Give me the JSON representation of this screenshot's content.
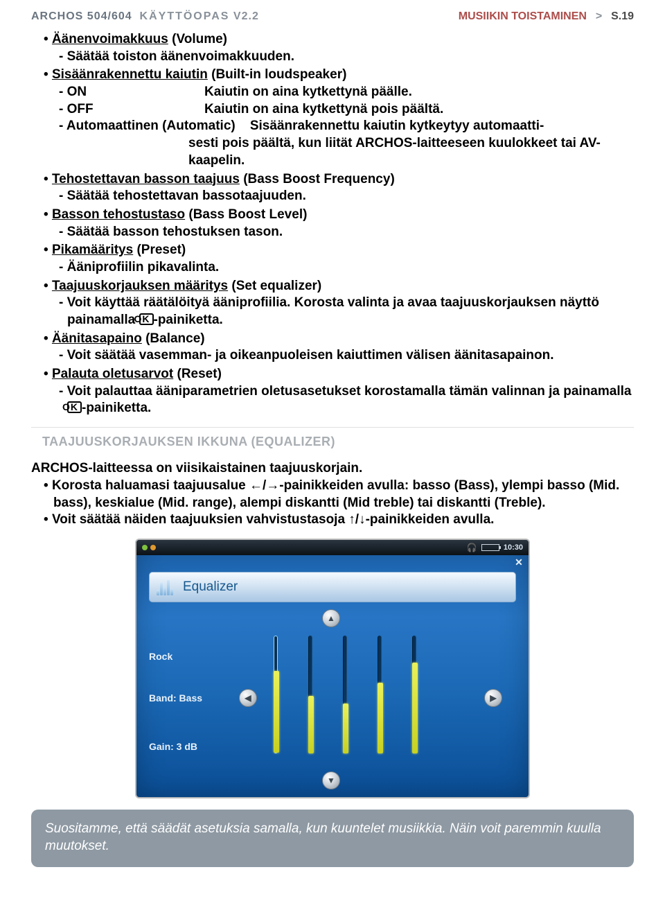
{
  "header": {
    "brand": "ARCHOS",
    "model": "504/604",
    "manual": "KÄYTTÖOPAS",
    "version": "V2.2",
    "breadcrumb": "MUSIIKIN TOISTAMINEN",
    "page_prefix": "S.",
    "page_num": "19"
  },
  "items": [
    {
      "title": "Äänenvoimakkuus",
      "paren": "(Volume)",
      "subs": [
        "Säätää toiston äänenvoimakkuuden."
      ]
    },
    {
      "title": "Sisäänrakennettu kaiutin",
      "paren": "(Built-in loudspeaker)",
      "rows": [
        {
          "lab": "ON",
          "desc": "Kaiutin on aina kytkettynä päälle."
        },
        {
          "lab": "OFF",
          "desc": "Kaiutin on aina kytkettynä pois päältä."
        },
        {
          "lab": "Automaattinen (Automatic)",
          "desc": "Sisäänrakennettu kaiutin kytkeytyy automaattisesti pois päältä, kun liität ARCHOS-laitteeseen kuulokkeet tai AV-kaapelin."
        }
      ]
    },
    {
      "title": "Tehostettavan basson taajuus",
      "paren": "(Bass Boost Frequency)",
      "subs": [
        "Säätää tehostettavan bassotaajuuden."
      ]
    },
    {
      "title": "Basson tehostustaso",
      "paren": "(Bass Boost Level)",
      "subs": [
        "Säätää basson tehostuksen tason."
      ]
    },
    {
      "title": "Pikamääritys",
      "paren": "(Preset)",
      "subs": [
        "Ääniprofiilin pikavalinta."
      ]
    },
    {
      "title": "Taajuuskorjauksen määritys",
      "paren": "(Set equalizer)",
      "subs_ok": [
        {
          "pre": "Voit käyttää räätälöityä ääniprofiilia. Korosta valinta ja avaa taajuuskorjauksen näyttö painamalla ",
          "post": "-painiketta."
        }
      ]
    },
    {
      "title": "Äänitasapaino",
      "paren": "(Balance)",
      "subs": [
        "Voit säätää vasemman- ja oikeanpuoleisen kaiuttimen välisen äänitasapainon."
      ]
    },
    {
      "title": "Palauta oletusarvot",
      "paren": "(Reset)",
      "subs_ok": [
        {
          "pre": "Voit palauttaa ääniparametrien oletusasetukset korostamalla tämän valinnan ja painamalla ",
          "post": "-painiketta."
        }
      ]
    }
  ],
  "section_title": "TAAJUUSKORJAUKSEN IKKUNA (EQUALIZER)",
  "eq_intro": "ARCHOS-laitteessa on viisikaistainen taajuuskorjain.",
  "eq_bullets": [
    "Korosta haluamasi taajuusalue ←/→-painikkeiden avulla: basso (Bass), ylempi basso (Mid. bass), keskialue (Mid. range), alempi diskantti (Mid treble) tai diskantti (Treble).",
    "Voit säätää näiden taajuuksien vahvistustasoja ↑/↓-painikkeiden avulla."
  ],
  "eq_screenshot": {
    "time": "10:30",
    "title": "Equalizer",
    "labels": {
      "preset": "Rock",
      "band": "Band: Bass",
      "gain": "Gain: 3 dB"
    },
    "sliders": [
      {
        "height_pct": 70,
        "selected": true
      },
      {
        "height_pct": 49,
        "selected": false
      },
      {
        "height_pct": 42,
        "selected": false
      },
      {
        "height_pct": 60,
        "selected": false
      },
      {
        "height_pct": 77,
        "selected": false
      }
    ],
    "nav": {
      "up": "▲",
      "down": "▼",
      "left": "◀",
      "right": "▶"
    },
    "icon_bars": [
      8,
      18,
      12,
      22,
      10
    ]
  },
  "tip": "Suositamme, että säädät asetuksia samalla, kun kuuntelet musiikkia. Näin voit paremmin kuulla muutokset."
}
